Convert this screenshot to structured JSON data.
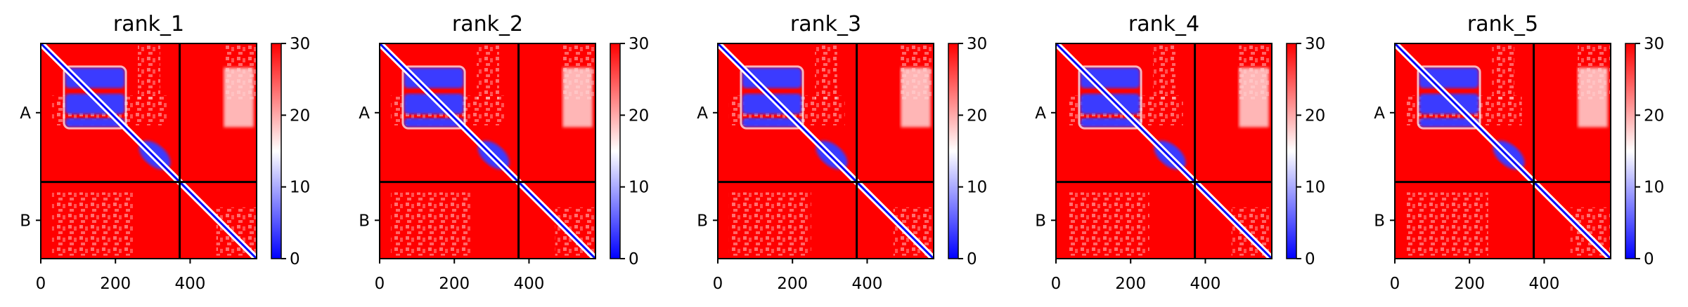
{
  "figure_type": "PAE heatmaps",
  "colors": {
    "low": "#0000ff",
    "mid": "#ffffff",
    "high": "#ff0000",
    "divider": "#000000"
  },
  "chart_data": [
    {
      "type": "heatmap",
      "title": "rank_1",
      "xlim": [
        0,
        578
      ],
      "x_ticks": [
        "0",
        "200",
        "400"
      ],
      "x_tick_values": [
        0,
        200,
        400
      ],
      "y_labels": [
        "A",
        "B"
      ],
      "chain_boundary": 372,
      "colorbar": {
        "min": 0,
        "max": 30,
        "ticks": [
          "0",
          "10",
          "20",
          "30"
        ]
      },
      "xlabel": "",
      "ylabel": ""
    },
    {
      "type": "heatmap",
      "title": "rank_2",
      "xlim": [
        0,
        578
      ],
      "x_ticks": [
        "0",
        "200",
        "400"
      ],
      "x_tick_values": [
        0,
        200,
        400
      ],
      "y_labels": [
        "A",
        "B"
      ],
      "chain_boundary": 372,
      "colorbar": {
        "min": 0,
        "max": 30,
        "ticks": [
          "0",
          "10",
          "20",
          "30"
        ]
      },
      "xlabel": "",
      "ylabel": ""
    },
    {
      "type": "heatmap",
      "title": "rank_3",
      "xlim": [
        0,
        578
      ],
      "x_ticks": [
        "0",
        "200",
        "400"
      ],
      "x_tick_values": [
        0,
        200,
        400
      ],
      "y_labels": [
        "A",
        "B"
      ],
      "chain_boundary": 372,
      "colorbar": {
        "min": 0,
        "max": 30,
        "ticks": [
          "0",
          "10",
          "20",
          "30"
        ]
      },
      "xlabel": "",
      "ylabel": ""
    },
    {
      "type": "heatmap",
      "title": "rank_4",
      "xlim": [
        0,
        578
      ],
      "x_ticks": [
        "0",
        "200",
        "400"
      ],
      "x_tick_values": [
        0,
        200,
        400
      ],
      "y_labels": [
        "A",
        "B"
      ],
      "chain_boundary": 372,
      "colorbar": {
        "min": 0,
        "max": 30,
        "ticks": [
          "0",
          "10",
          "20",
          "30"
        ]
      },
      "xlabel": "",
      "ylabel": ""
    },
    {
      "type": "heatmap",
      "title": "rank_5",
      "xlim": [
        0,
        578
      ],
      "x_ticks": [
        "0",
        "200",
        "400"
      ],
      "x_tick_values": [
        0,
        200,
        400
      ],
      "y_labels": [
        "A",
        "B"
      ],
      "chain_boundary": 372,
      "colorbar": {
        "min": 0,
        "max": 30,
        "ticks": [
          "0",
          "10",
          "20",
          "30"
        ]
      },
      "xlabel": "",
      "ylabel": ""
    }
  ]
}
